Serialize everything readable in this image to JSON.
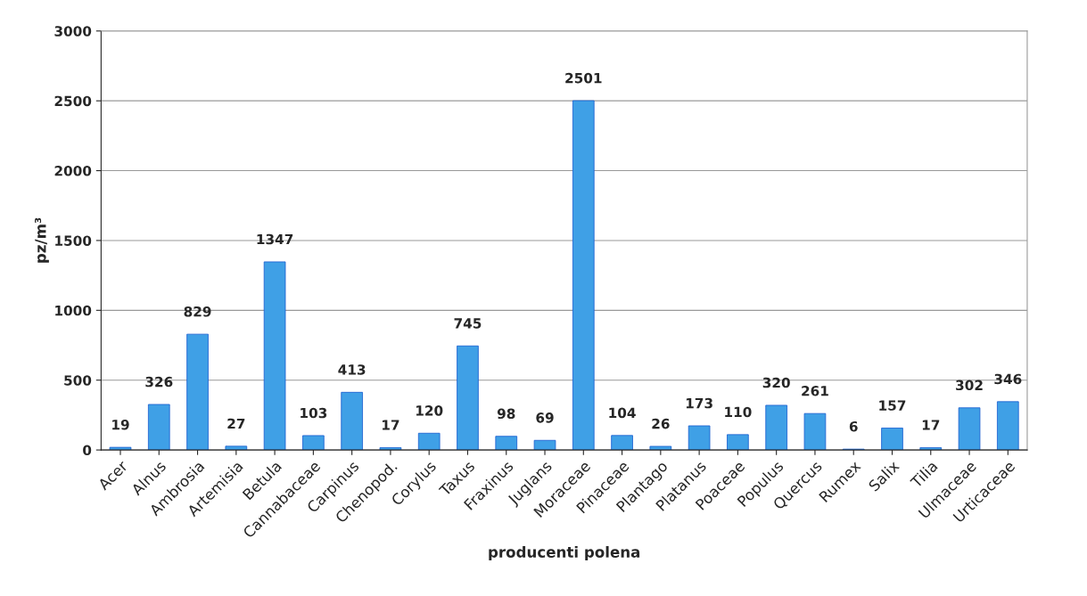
{
  "chart_data": {
    "type": "bar",
    "xlabel": "producenti polena",
    "ylabel": "pz/m³",
    "categories": [
      "Acer",
      "Alnus",
      "Ambrosia",
      "Artemisia",
      "Betula",
      "Cannabaceae",
      "Carpinus",
      "Chenopod.",
      "Corylus",
      "Taxus",
      "Fraxinus",
      "Juglans",
      "Moraceae",
      "Pinaceae",
      "Plantago",
      "Platanus",
      "Poaceae",
      "Populus",
      "Quercus",
      "Rumex",
      "Salix",
      "Tilia",
      "Ulmaceae",
      "Urticaceae"
    ],
    "values": [
      19,
      326,
      829,
      27,
      1347,
      103,
      413,
      17,
      120,
      745,
      98,
      69,
      2501,
      104,
      26,
      173,
      110,
      320,
      261,
      6,
      157,
      17,
      302,
      346
    ],
    "color": "#3fa0e6",
    "ylim": [
      0,
      3000
    ],
    "yticks": [
      0,
      500,
      1000,
      1500,
      2000,
      2500,
      3000
    ],
    "grid": "y",
    "data_labels": true
  }
}
